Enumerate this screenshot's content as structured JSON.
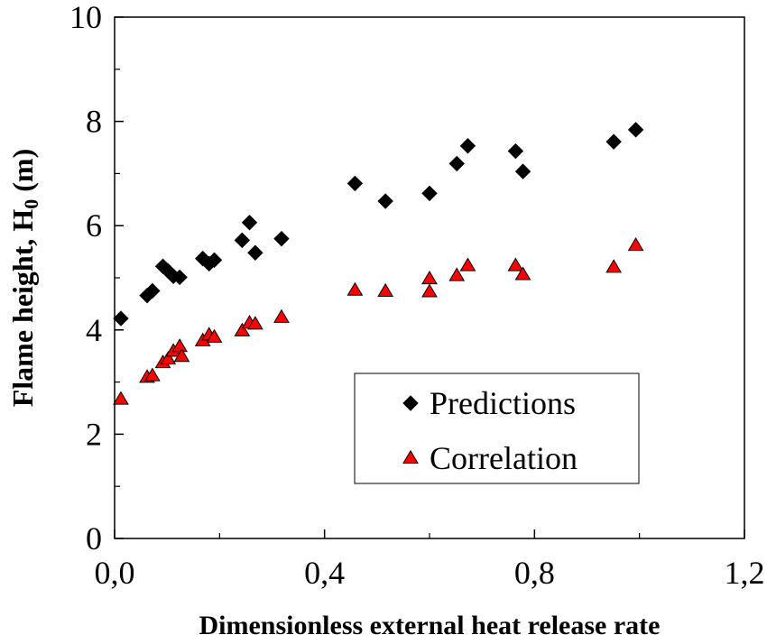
{
  "chart_data": {
    "type": "scatter",
    "xlabel": "Dimensionless external heat release rate",
    "ylabel": "Flame height, H",
    "ylabel_sub": "0",
    "ylabel_unit": " (m)",
    "xlim": [
      0.0,
      1.2
    ],
    "ylim": [
      0,
      10
    ],
    "x_ticks": [
      0.0,
      0.4,
      0.8,
      1.2
    ],
    "x_tick_labels": [
      "0,0",
      "0,4",
      "0,8",
      "1,2"
    ],
    "y_ticks": [
      0,
      2,
      4,
      6,
      8,
      10
    ],
    "y_tick_labels": [
      "0",
      "2",
      "4",
      "6",
      "8",
      "10"
    ],
    "grid": false,
    "legend_position": "bottom-right",
    "series": [
      {
        "name": "Predictions",
        "marker": "diamond",
        "color": "#000000",
        "points": [
          [
            0.012,
            4.22
          ],
          [
            0.062,
            4.66
          ],
          [
            0.072,
            4.75
          ],
          [
            0.092,
            5.22
          ],
          [
            0.102,
            5.13
          ],
          [
            0.112,
            5.03
          ],
          [
            0.124,
            5.01
          ],
          [
            0.168,
            5.37
          ],
          [
            0.18,
            5.27
          ],
          [
            0.19,
            5.34
          ],
          [
            0.243,
            5.72
          ],
          [
            0.257,
            6.06
          ],
          [
            0.268,
            5.48
          ],
          [
            0.318,
            5.75
          ],
          [
            0.458,
            6.81
          ],
          [
            0.516,
            6.47
          ],
          [
            0.6,
            6.62
          ],
          [
            0.652,
            7.19
          ],
          [
            0.673,
            7.53
          ],
          [
            0.764,
            7.43
          ],
          [
            0.778,
            7.04
          ],
          [
            0.951,
            7.61
          ],
          [
            0.993,
            7.84
          ]
        ]
      },
      {
        "name": "Correlation",
        "marker": "triangle",
        "color": "#ff0000",
        "points": [
          [
            0.012,
            2.67
          ],
          [
            0.062,
            3.09
          ],
          [
            0.072,
            3.12
          ],
          [
            0.092,
            3.37
          ],
          [
            0.102,
            3.44
          ],
          [
            0.112,
            3.59
          ],
          [
            0.124,
            3.68
          ],
          [
            0.128,
            3.49
          ],
          [
            0.168,
            3.79
          ],
          [
            0.18,
            3.9
          ],
          [
            0.19,
            3.86
          ],
          [
            0.243,
            3.98
          ],
          [
            0.257,
            4.13
          ],
          [
            0.268,
            4.11
          ],
          [
            0.318,
            4.24
          ],
          [
            0.458,
            4.76
          ],
          [
            0.516,
            4.74
          ],
          [
            0.6,
            4.98
          ],
          [
            0.6,
            4.73
          ],
          [
            0.652,
            5.04
          ],
          [
            0.673,
            5.23
          ],
          [
            0.764,
            5.23
          ],
          [
            0.778,
            5.06
          ],
          [
            0.951,
            5.2
          ],
          [
            0.993,
            5.62
          ]
        ]
      }
    ]
  }
}
